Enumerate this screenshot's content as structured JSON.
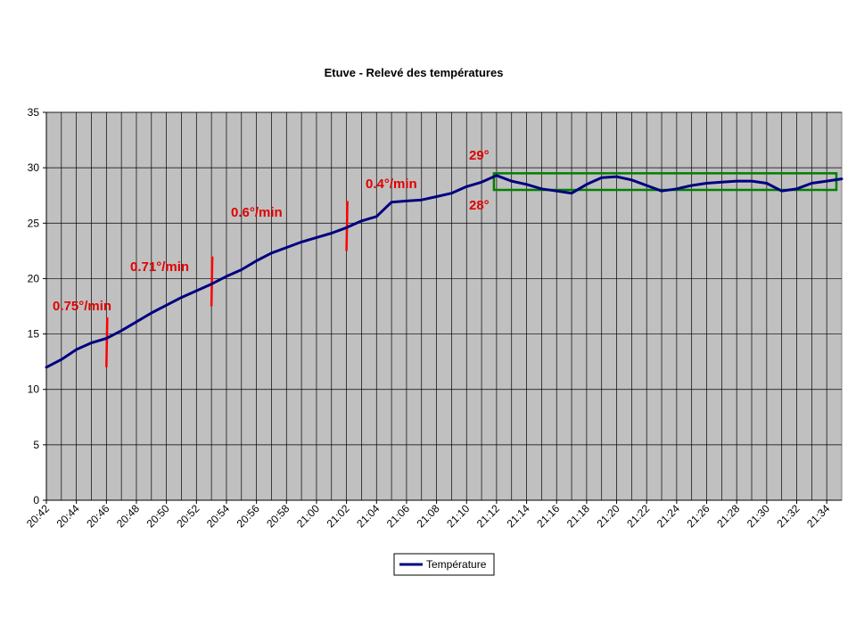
{
  "chart_data": {
    "type": "line",
    "title": "Etuve - Relevé des températures",
    "xlabel": "",
    "ylabel": "",
    "ylim": [
      0,
      35
    ],
    "y_ticks": [
      0,
      5,
      10,
      15,
      20,
      25,
      30,
      35
    ],
    "x_tick_labels": [
      "20:42",
      "20:44",
      "20:46",
      "20:48",
      "20:50",
      "20:52",
      "20:54",
      "20:56",
      "20:58",
      "21:00",
      "21:02",
      "21:04",
      "21:06",
      "21:08",
      "21:10",
      "21:12",
      "21:14",
      "21:16",
      "21:18",
      "21:20",
      "21:22",
      "21:24",
      "21:26",
      "21:28",
      "21:30",
      "21:32",
      "21:34"
    ],
    "x_range_minutes": [
      "20:42",
      "21:35"
    ],
    "grid": "vertical and horizontal",
    "plot_background": "#c0c0c0",
    "legend_position": "bottom-center",
    "series": [
      {
        "name": "Température",
        "color": "#000080",
        "points": [
          [
            "20:42",
            12.0
          ],
          [
            "20:43",
            12.7
          ],
          [
            "20:44",
            13.6
          ],
          [
            "20:45",
            14.2
          ],
          [
            "20:46",
            14.6
          ],
          [
            "20:47",
            15.3
          ],
          [
            "20:48",
            16.1
          ],
          [
            "20:49",
            16.9
          ],
          [
            "20:50",
            17.6
          ],
          [
            "20:51",
            18.3
          ],
          [
            "20:52",
            18.9
          ],
          [
            "20:53",
            19.5
          ],
          [
            "20:54",
            20.2
          ],
          [
            "20:55",
            20.8
          ],
          [
            "20:56",
            21.6
          ],
          [
            "20:57",
            22.3
          ],
          [
            "20:58",
            22.8
          ],
          [
            "20:59",
            23.3
          ],
          [
            "21:00",
            23.7
          ],
          [
            "21:01",
            24.1
          ],
          [
            "21:02",
            24.6
          ],
          [
            "21:03",
            25.2
          ],
          [
            "21:04",
            25.6
          ],
          [
            "21:05",
            26.9
          ],
          [
            "21:06",
            27.0
          ],
          [
            "21:07",
            27.1
          ],
          [
            "21:08",
            27.4
          ],
          [
            "21:09",
            27.7
          ],
          [
            "21:10",
            28.3
          ],
          [
            "21:11",
            28.7
          ],
          [
            "21:12",
            29.3
          ],
          [
            "21:13",
            28.8
          ],
          [
            "21:14",
            28.5
          ],
          [
            "21:15",
            28.1
          ],
          [
            "21:16",
            27.9
          ],
          [
            "21:17",
            27.7
          ],
          [
            "21:18",
            28.5
          ],
          [
            "21:19",
            29.1
          ],
          [
            "21:20",
            29.2
          ],
          [
            "21:21",
            28.9
          ],
          [
            "21:22",
            28.4
          ],
          [
            "21:23",
            27.9
          ],
          [
            "21:24",
            28.1
          ],
          [
            "21:25",
            28.4
          ],
          [
            "21:26",
            28.6
          ],
          [
            "21:27",
            28.7
          ],
          [
            "21:28",
            28.8
          ],
          [
            "21:29",
            28.8
          ],
          [
            "21:30",
            28.6
          ],
          [
            "21:31",
            27.9
          ],
          [
            "21:32",
            28.1
          ],
          [
            "21:33",
            28.6
          ],
          [
            "21:34",
            28.8
          ],
          [
            "21:35",
            29.0
          ]
        ]
      }
    ],
    "rate_annotations": [
      {
        "label": "0.75°/min",
        "marker_time": "20:46",
        "marker_y": [
          12,
          16.5
        ]
      },
      {
        "label": "0.71°/min",
        "marker_time": "20:53",
        "marker_y": [
          17.5,
          22
        ]
      },
      {
        "label": "0.6°/min",
        "marker_time": "21:02",
        "marker_y": [
          22.5,
          27
        ]
      },
      {
        "label": "0.4°/min",
        "marker_time": "21:10",
        "marker_y": null
      }
    ],
    "range_box": {
      "label_top": "29°",
      "label_bottom": "28°",
      "x_from": "21:12",
      "x_to": "21:35",
      "y_from": 28,
      "y_to": 29.5,
      "color": "#008000"
    }
  }
}
